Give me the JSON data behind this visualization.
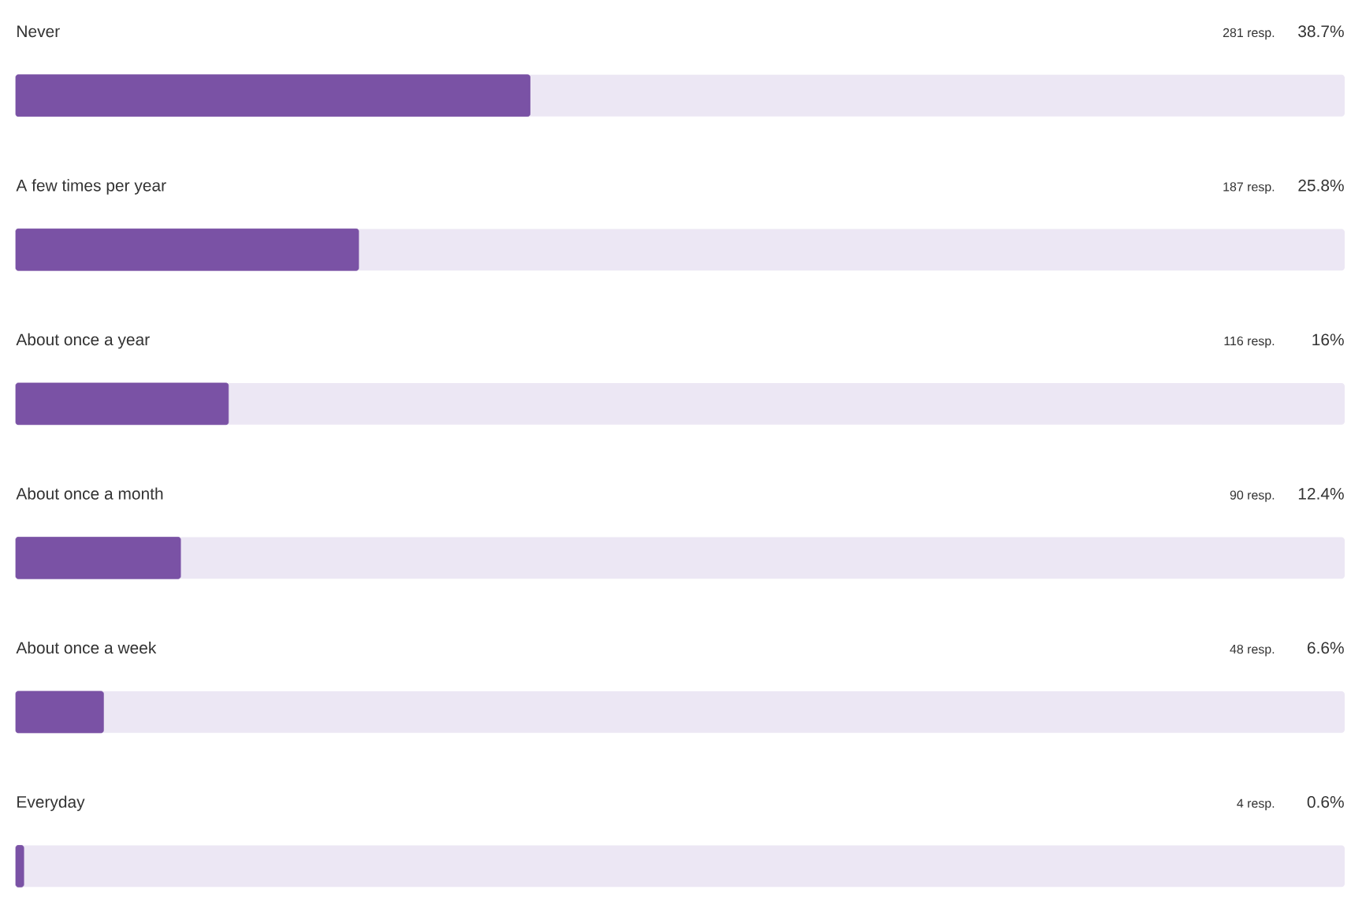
{
  "chart_data": {
    "type": "bar",
    "orientation": "horizontal",
    "categories": [
      "Never",
      "A few times per year",
      "About once a year",
      "About once a month",
      "About once a week",
      "Everyday"
    ],
    "values": [
      38.7,
      25.8,
      16,
      12.4,
      6.6,
      0.6
    ],
    "value_labels": [
      "38.7%",
      "25.8%",
      "16%",
      "12.4%",
      "6.6%",
      "0.6%"
    ],
    "annotations": [
      "281 resp.",
      "187 resp.",
      "116 resp.",
      "90 resp.",
      "48 resp.",
      "4 resp."
    ],
    "color": "#7a52a5",
    "xlim": [
      0,
      100
    ]
  }
}
